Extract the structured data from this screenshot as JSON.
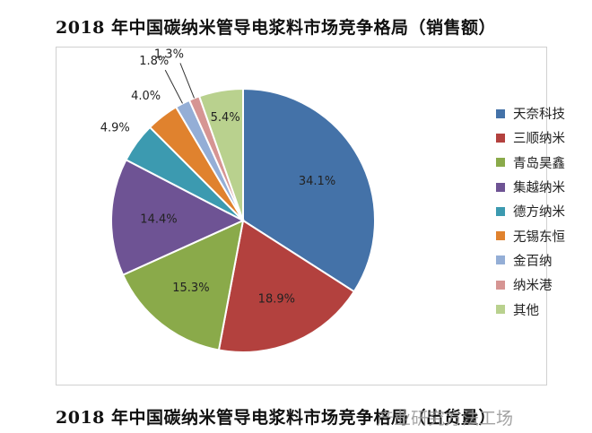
{
  "title": "2018 年中国碳纳米管导电浆料市场竞争格局（销售额）",
  "bottom_title": "2018 年中国碳纳米管导电浆料市场竞争格局（出货量）",
  "watermark_text": "产业研究方法工场",
  "chart_data": {
    "type": "pie",
    "title": "2018 年中国碳纳米管导电浆料市场竞争格局（销售额）",
    "legend_position": "right",
    "slices": [
      {
        "label": "天奈科技",
        "value": 34.1,
        "value_label": "34.1%",
        "color": "#4472a8"
      },
      {
        "label": "三顺纳米",
        "value": 18.9,
        "value_label": "18.9%",
        "color": "#b3413e"
      },
      {
        "label": "青岛昊鑫",
        "value": 15.3,
        "value_label": "15.3%",
        "color": "#8aaa4a"
      },
      {
        "label": "集越纳米",
        "value": 14.4,
        "value_label": "14.4%",
        "color": "#6e5394"
      },
      {
        "label": "德方纳米",
        "value": 4.9,
        "value_label": "4.9%",
        "color": "#3c9ab0"
      },
      {
        "label": "无锡东恒",
        "value": 4.0,
        "value_label": "4.0%",
        "color": "#e0822e"
      },
      {
        "label": "金百纳",
        "value": 1.8,
        "value_label": "1.8%",
        "color": "#94aed6"
      },
      {
        "label": "纳米港",
        "value": 1.3,
        "value_label": "1.3%",
        "color": "#d69593"
      },
      {
        "label": "其他",
        "value": 5.4,
        "value_label": "5.4%",
        "color": "#b9d18e"
      }
    ]
  }
}
